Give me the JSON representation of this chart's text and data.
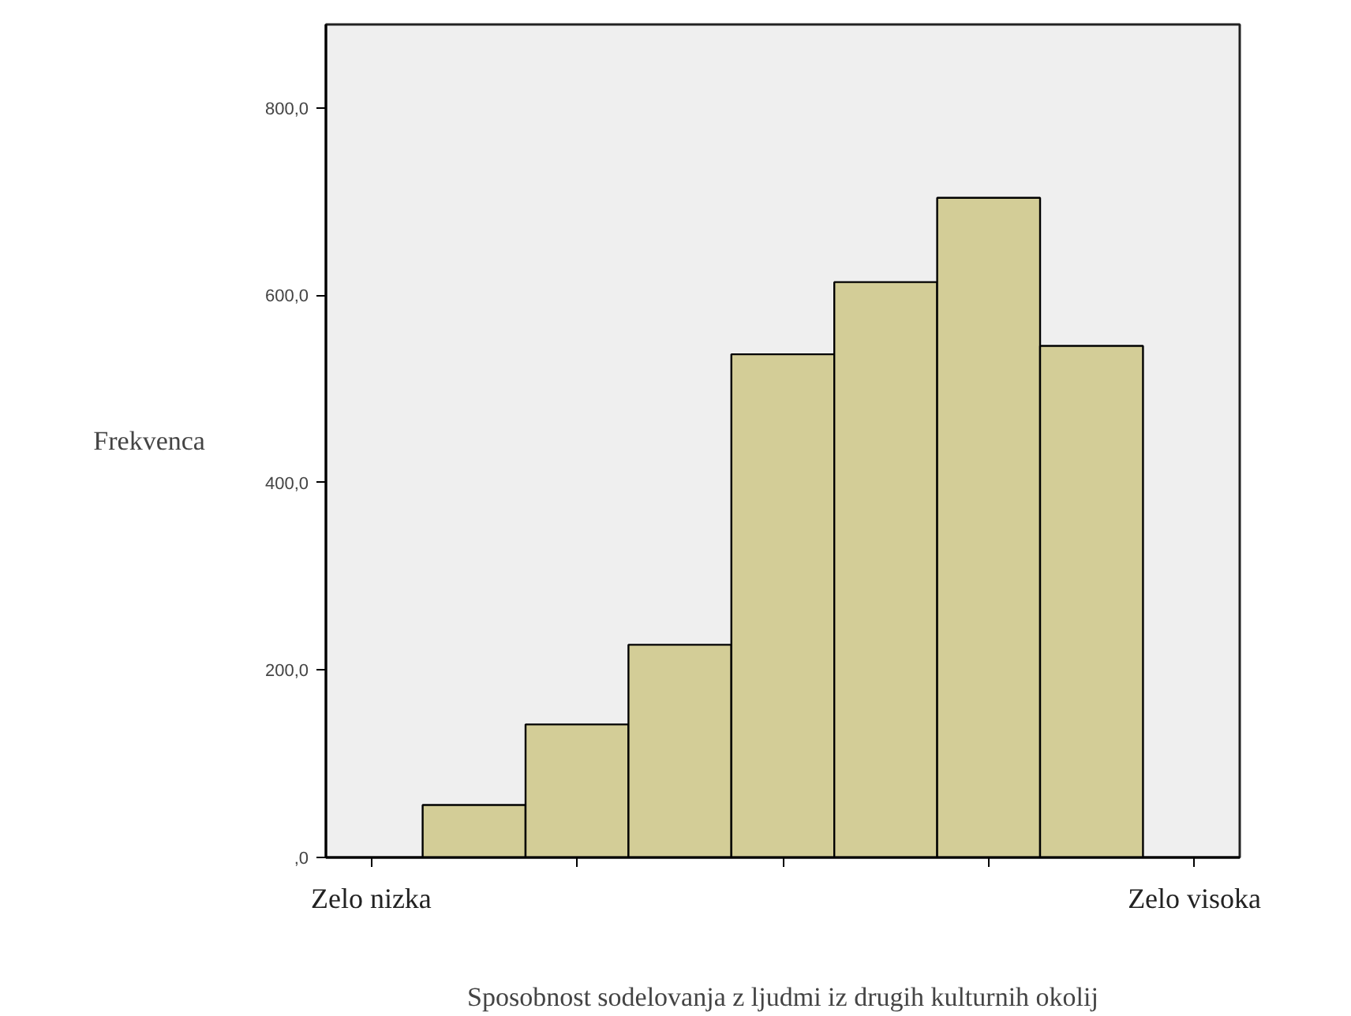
{
  "chart_data": {
    "type": "bar",
    "xlabel": "Sposobnost sodelovanja z ljudmi iz drugih kulturnih okolij",
    "ylabel": "Frekvenca",
    "categories": [
      null,
      null,
      null,
      null,
      null,
      null,
      null
    ],
    "values": [
      56,
      142,
      227,
      537,
      614,
      704,
      546
    ],
    "color": "#d3cd97",
    "annotations": [
      "Zelo nizka",
      "Zelo visoka"
    ],
    "ylim": [
      0,
      889
    ],
    "yticks": [
      {
        "value": 0,
        "label": ",0"
      },
      {
        "value": 200,
        "label": "200,0"
      },
      {
        "value": 400,
        "label": "400,0"
      },
      {
        "value": 600,
        "label": "600,0"
      },
      {
        "value": 800,
        "label": "800,0"
      }
    ],
    "grid": false
  }
}
